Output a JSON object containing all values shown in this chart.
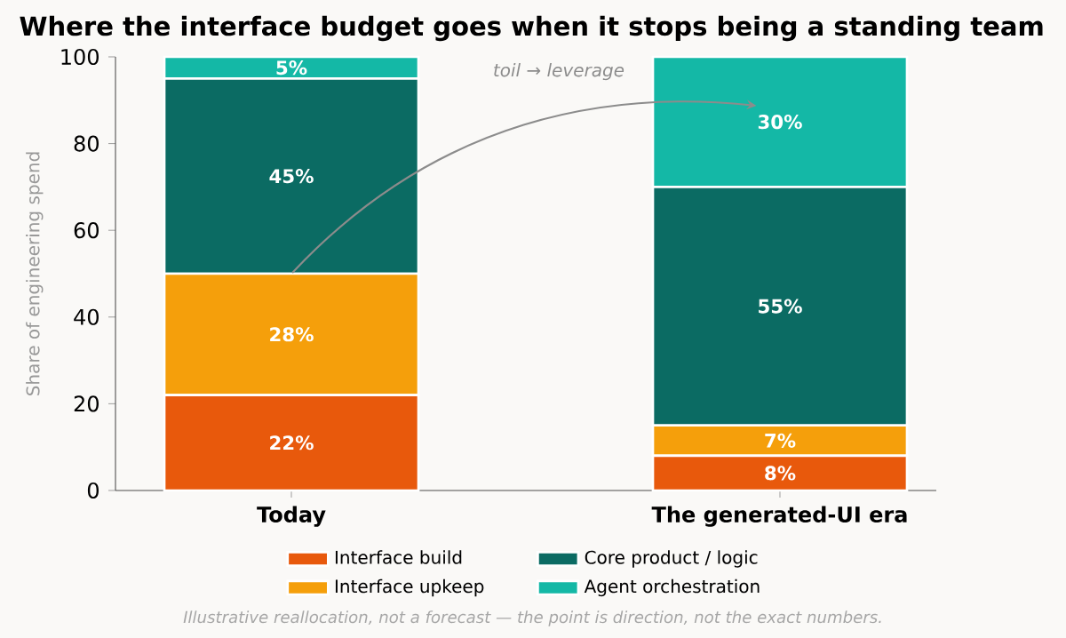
{
  "chart_data": {
    "type": "bar",
    "stacked": true,
    "title": "Where the interface budget goes when it stops being a standing team",
    "ylabel": "Share of engineering spend",
    "categories": [
      "Today",
      "The generated-UI era"
    ],
    "series": [
      {
        "name": "Interface build",
        "color": "#e8590c",
        "values": [
          22,
          8
        ],
        "value_labels": [
          "22%",
          "8%"
        ]
      },
      {
        "name": "Interface upkeep",
        "color": "#f59f0b",
        "values": [
          28,
          7
        ],
        "value_labels": [
          "28%",
          "7%"
        ]
      },
      {
        "name": "Core product / logic",
        "color": "#0b6b63",
        "values": [
          45,
          55
        ],
        "value_labels": [
          "45%",
          "55%"
        ]
      },
      {
        "name": "Agent orchestration",
        "color": "#14b8a6",
        "values": [
          5,
          30
        ],
        "value_labels": [
          "5%",
          "30%"
        ]
      }
    ],
    "ylim": [
      0,
      100
    ],
    "yticks": [
      0,
      20,
      40,
      60,
      80,
      100
    ],
    "legend": "bottom",
    "annotations": [
      "toil → leverage",
      "Illustrative reallocation, not a forecast — the point is direction, not the exact numbers."
    ]
  }
}
